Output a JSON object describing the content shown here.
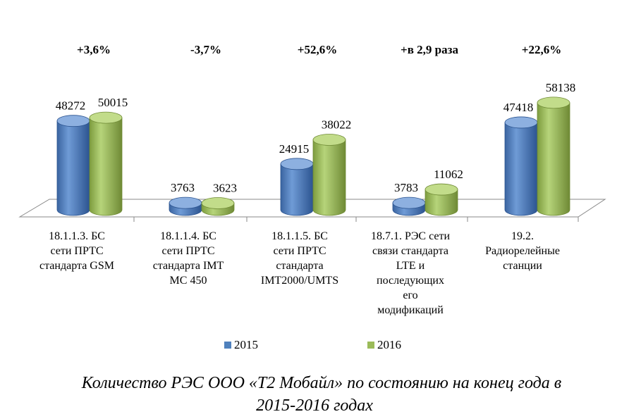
{
  "chart_data": {
    "type": "bar",
    "style": "3d-cylinder",
    "categories": [
      "18.1.1.3. БС сети ПРТС стандарта GSM",
      "18.1.1.4. БС сети ПРТС стандарта IMT MC 450",
      "18.1.1.5. БС сети ПРТС стандарта IMT2000/UMTS",
      "18.7.1. РЭС сети связи стандарта LTE и последующих его модификаций",
      "19.2. Радиорелейные станции"
    ],
    "category_lines": [
      [
        "18.1.1.3. БС",
        "сети ПРТС",
        "стандарта GSM"
      ],
      [
        "18.1.1.4. БС",
        "сети ПРТС",
        "стандарта IMT",
        "MC 450"
      ],
      [
        "18.1.1.5. БС",
        "сети ПРТС",
        "стандарта",
        "IMT2000/UMTS"
      ],
      [
        "18.7.1. РЭС сети",
        "связи стандарта",
        "LTE и",
        "последующих",
        "его",
        "модификаций"
      ],
      [
        "19.2.",
        "Радиорелейные",
        "станции"
      ]
    ],
    "series": [
      {
        "name": "2015",
        "values": [
          48272,
          3763,
          24915,
          3783,
          47418
        ],
        "color": "#4f81bd"
      },
      {
        "name": "2016",
        "values": [
          50015,
          3623,
          38022,
          11062,
          58138
        ],
        "color": "#9bbb59"
      }
    ],
    "value_labels": [
      [
        "48272",
        "3763",
        "24915",
        "3783",
        "47418"
      ],
      [
        "50015",
        "3623",
        "38022",
        "11062",
        "58138"
      ]
    ],
    "change_labels": [
      "+3,6%",
      "-3,7%",
      "+52,6%",
      "+в 2,9 раза",
      "+22,6%"
    ],
    "ylim": [
      0,
      60000
    ],
    "legend_position": "bottom",
    "xlabel": "",
    "ylabel": ""
  },
  "legend": {
    "items": [
      {
        "label": "2015",
        "color": "#4f81bd"
      },
      {
        "label": "2016",
        "color": "#9bbb59"
      }
    ]
  },
  "caption": {
    "line1": "Количество РЭС ООО «Т2 Мобайл» по состоянию на конец года в",
    "line2": "2015-2016 годах"
  }
}
